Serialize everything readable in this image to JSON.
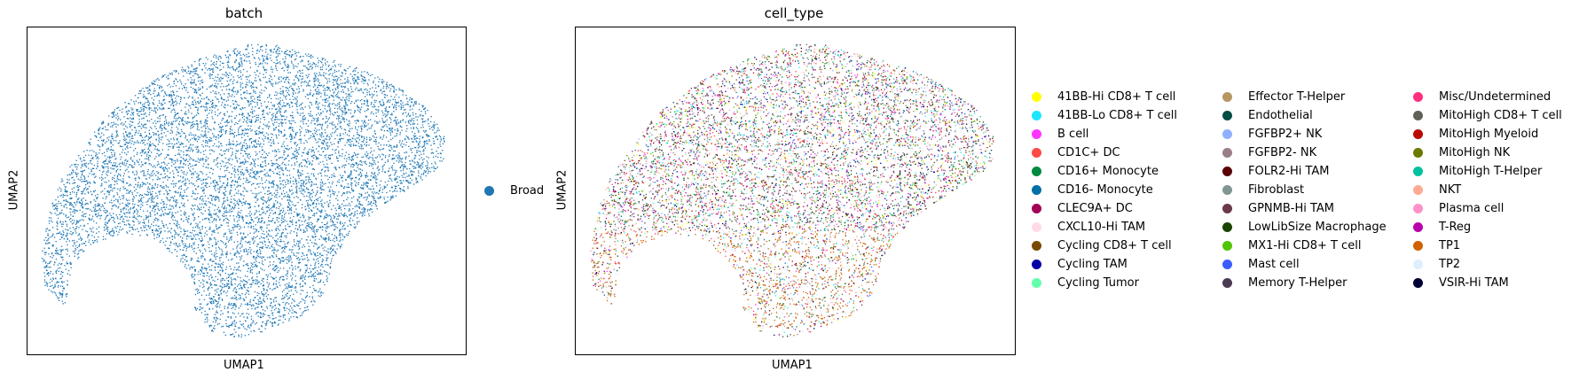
{
  "chart_data": [
    {
      "type": "scatter",
      "title": "batch",
      "xlabel": "UMAP1",
      "ylabel": "UMAP2",
      "xticks": [],
      "yticks": [],
      "grid": false,
      "legend_position": "right",
      "series": [
        {
          "name": "Broad",
          "color": "#1f77b4"
        }
      ]
    },
    {
      "type": "scatter",
      "title": "cell_type",
      "xlabel": "UMAP1",
      "ylabel": "UMAP2",
      "xticks": [],
      "yticks": [],
      "grid": false,
      "legend_position": "right",
      "legend_columns": 3,
      "series": [
        {
          "name": "41BB-Hi CD8+ T cell",
          "color": "#ffff00"
        },
        {
          "name": "41BB-Lo CD8+ T cell",
          "color": "#1ce6ff"
        },
        {
          "name": "B cell",
          "color": "#ff34ff"
        },
        {
          "name": "CD1C+ DC",
          "color": "#ff4a46"
        },
        {
          "name": "CD16+ Monocyte",
          "color": "#008941"
        },
        {
          "name": "CD16- Monocyte",
          "color": "#006fa6"
        },
        {
          "name": "CLEC9A+ DC",
          "color": "#a30059"
        },
        {
          "name": "CXCL10-Hi TAM",
          "color": "#ffdbe5"
        },
        {
          "name": "Cycling CD8+ T cell",
          "color": "#7a4900"
        },
        {
          "name": "Cycling TAM",
          "color": "#0000a6"
        },
        {
          "name": "Cycling Tumor",
          "color": "#63ffac"
        },
        {
          "name": "Effector T-Helper",
          "color": "#b79762"
        },
        {
          "name": "Endothelial",
          "color": "#004d43"
        },
        {
          "name": "FGFBP2+ NK",
          "color": "#8fb0ff"
        },
        {
          "name": "FGFBP2- NK",
          "color": "#997d87"
        },
        {
          "name": "FOLR2-Hi TAM",
          "color": "#5a0007"
        },
        {
          "name": "Fibroblast",
          "color": "#809693"
        },
        {
          "name": "GPNMB-Hi TAM",
          "color": "#6a3a4c"
        },
        {
          "name": "LowLibSize Macrophage",
          "color": "#1b4400"
        },
        {
          "name": "MX1-Hi CD8+ T cell",
          "color": "#4fc601"
        },
        {
          "name": "Mast cell",
          "color": "#3b5dff"
        },
        {
          "name": "Memory T-Helper",
          "color": "#4a3b53"
        },
        {
          "name": "Misc/Undetermined",
          "color": "#ff2f80"
        },
        {
          "name": "MitoHigh CD8+ T cell",
          "color": "#61615a"
        },
        {
          "name": "MitoHigh Myeloid",
          "color": "#ba0900"
        },
        {
          "name": "MitoHigh NK",
          "color": "#6b7900"
        },
        {
          "name": "MitoHigh T-Helper",
          "color": "#00c2a0"
        },
        {
          "name": "NKT",
          "color": "#ffaa92"
        },
        {
          "name": "Plasma cell",
          "color": "#ff90c9"
        },
        {
          "name": "T-Reg",
          "color": "#b903aa"
        },
        {
          "name": "TP1",
          "color": "#d16100"
        },
        {
          "name": "TP2",
          "color": "#ddefff"
        },
        {
          "name": "VSIR-Hi TAM",
          "color": "#000035"
        }
      ]
    }
  ]
}
